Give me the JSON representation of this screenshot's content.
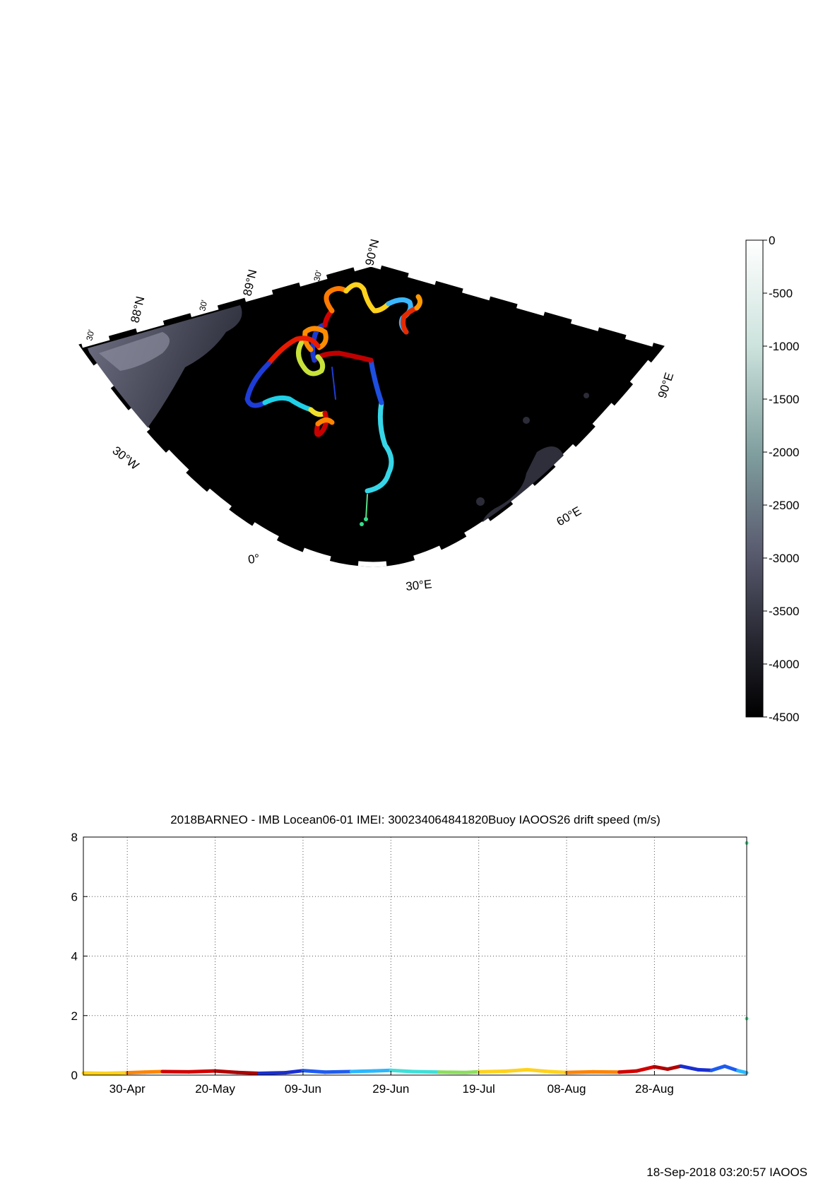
{
  "map": {
    "grid_labels": {
      "lat_88": "88°N",
      "lat_89": "89°N",
      "lat_90": "90°N",
      "min_30_a": "30'",
      "min_30_b": "30'",
      "min_30_c": "30'",
      "lon_30w": "30°W",
      "lon_0": "0°",
      "lon_30e": "30°E",
      "lon_60e": "60°E",
      "lon_90e": "90°E"
    },
    "colors": {
      "ocean": "#000000",
      "shelf": "#3a3b4c",
      "shelf_light": "#6d6e82"
    }
  },
  "colorbar": {
    "ticks": [
      "0",
      "-500",
      "-1000",
      "-1500",
      "-2000",
      "-2500",
      "-3000",
      "-3500",
      "-4000",
      "-4500"
    ]
  },
  "chart_data": {
    "type": "line",
    "title": "2018BARNEO - IMB Locean06-01 IMEI: 300234064841820Buoy IAOOS26 drift speed (m/s)",
    "xlabel": "",
    "ylabel": "",
    "x_ticks": [
      "30-Apr",
      "20-May",
      "09-Jun",
      "29-Jun",
      "19-Jul",
      "08-Aug",
      "28-Aug"
    ],
    "x_range": [
      "2018-04-20",
      "2018-09-18"
    ],
    "ylim": [
      0,
      8
    ],
    "y_ticks": [
      "0",
      "2",
      "4",
      "6",
      "8"
    ],
    "grid": true,
    "speed_points": [
      {
        "date": "2018-04-20",
        "speed": 0.07
      },
      {
        "date": "2018-04-25",
        "speed": 0.06
      },
      {
        "date": "2018-04-30",
        "speed": 0.08
      },
      {
        "date": "2018-05-04",
        "speed": 0.1
      },
      {
        "date": "2018-05-08",
        "speed": 0.12
      },
      {
        "date": "2018-05-14",
        "speed": 0.11
      },
      {
        "date": "2018-05-20",
        "speed": 0.14
      },
      {
        "date": "2018-05-25",
        "speed": 0.09
      },
      {
        "date": "2018-05-30",
        "speed": 0.06
      },
      {
        "date": "2018-06-05",
        "speed": 0.08
      },
      {
        "date": "2018-06-09",
        "speed": 0.15
      },
      {
        "date": "2018-06-14",
        "speed": 0.1
      },
      {
        "date": "2018-06-20",
        "speed": 0.12
      },
      {
        "date": "2018-06-25",
        "speed": 0.14
      },
      {
        "date": "2018-06-29",
        "speed": 0.16
      },
      {
        "date": "2018-07-04",
        "speed": 0.12
      },
      {
        "date": "2018-07-10",
        "speed": 0.1
      },
      {
        "date": "2018-07-16",
        "speed": 0.09
      },
      {
        "date": "2018-07-19",
        "speed": 0.11
      },
      {
        "date": "2018-07-25",
        "speed": 0.13
      },
      {
        "date": "2018-07-30",
        "speed": 0.18
      },
      {
        "date": "2018-08-04",
        "speed": 0.12
      },
      {
        "date": "2018-08-08",
        "speed": 0.09
      },
      {
        "date": "2018-08-14",
        "speed": 0.11
      },
      {
        "date": "2018-08-20",
        "speed": 0.1
      },
      {
        "date": "2018-08-24",
        "speed": 0.14
      },
      {
        "date": "2018-08-28",
        "speed": 0.28
      },
      {
        "date": "2018-08-31",
        "speed": 0.2
      },
      {
        "date": "2018-09-03",
        "speed": 0.3
      },
      {
        "date": "2018-09-07",
        "speed": 0.18
      },
      {
        "date": "2018-09-10",
        "speed": 0.16
      },
      {
        "date": "2018-09-13",
        "speed": 0.3
      },
      {
        "date": "2018-09-16",
        "speed": 0.15
      },
      {
        "date": "2018-09-18",
        "speed": 0.08
      }
    ],
    "outliers": [
      {
        "date": "2018-09-18",
        "speed": 7.8
      },
      {
        "date": "2018-09-18",
        "speed": 1.9
      }
    ]
  },
  "footer": {
    "timestamp": "18-Sep-2018 03:20:57 IAOOS"
  }
}
